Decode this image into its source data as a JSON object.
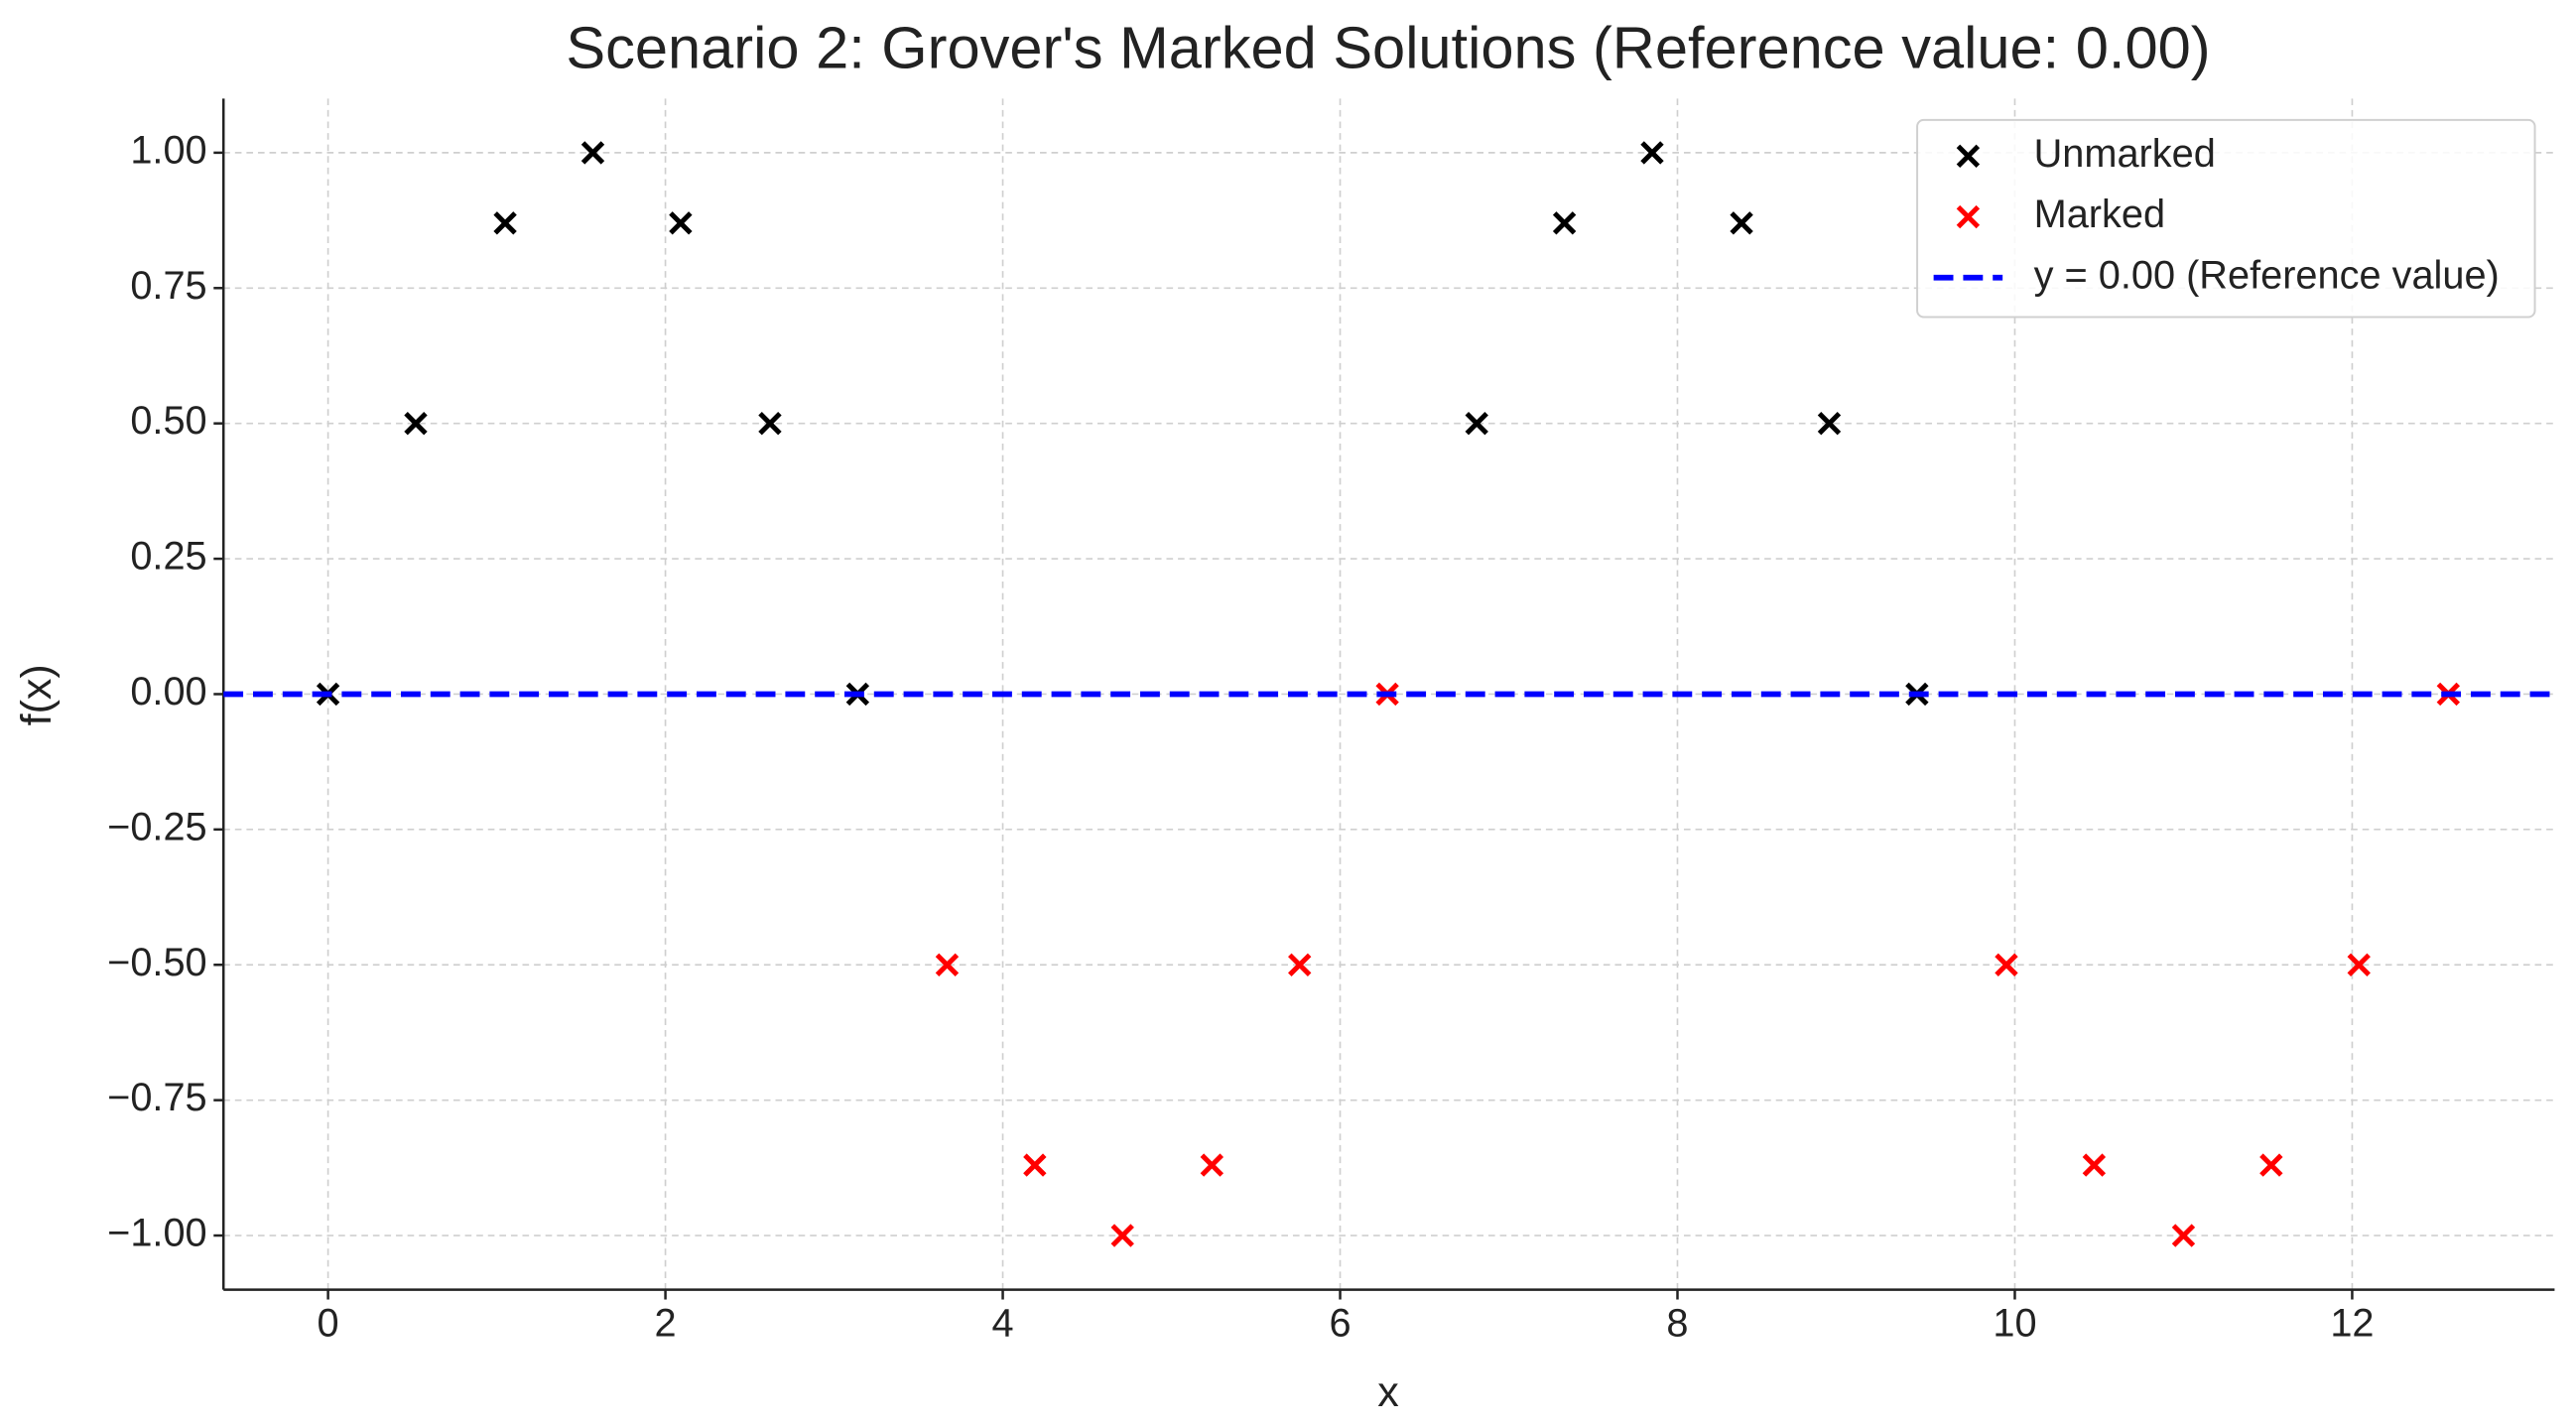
{
  "chart_data": {
    "type": "scatter",
    "title": "Scenario 2: Grover's Marked Solutions (Reference value: 0.00)",
    "x_label": "x",
    "y_label": "f(x)",
    "xlim": [
      -0.62,
      13.2
    ],
    "ylim": [
      -1.1,
      1.1
    ],
    "xticks": [
      0,
      2,
      4,
      6,
      8,
      10,
      12
    ],
    "yticks": [
      {
        "value": 1,
        "label": "1.00"
      },
      {
        "value": 0.75,
        "label": "0.75"
      },
      {
        "value": 0.5,
        "label": "0.50"
      },
      {
        "value": 0.25,
        "label": "0.25"
      },
      {
        "value": 0,
        "label": "0.00"
      },
      {
        "value": -0.25,
        "label": "−0.25"
      },
      {
        "value": -0.5,
        "label": "−0.50"
      },
      {
        "value": -0.75,
        "label": "−0.75"
      },
      {
        "value": -1,
        "label": "−1.00"
      }
    ],
    "grid": true,
    "legend_position": "upper right",
    "series": [
      {
        "name": "Unmarked",
        "color": "#000000",
        "x": [
          0,
          0.52,
          1.05,
          1.57,
          2.09,
          2.62,
          3.14,
          6.81,
          7.33,
          7.85,
          8.38,
          8.9,
          9.42
        ],
        "values": [
          0,
          0.5,
          0.87,
          1,
          0.87,
          0.5,
          0,
          0.5,
          0.87,
          1,
          0.87,
          0.5,
          0
        ]
      },
      {
        "name": "Marked",
        "color": "#ff0000",
        "x": [
          3.67,
          4.19,
          4.71,
          5.24,
          5.76,
          6.28,
          9.95,
          10.47,
          11.0,
          11.52,
          12.04,
          12.57
        ],
        "values": [
          -0.5,
          -0.87,
          -1,
          -0.87,
          -0.5,
          0,
          -0.5,
          -0.87,
          -1,
          -0.87,
          -0.5,
          0
        ]
      }
    ],
    "reference_line": {
      "value": 0,
      "label": "y = 0.00 (Reference value)",
      "color": "#0000ff"
    }
  }
}
